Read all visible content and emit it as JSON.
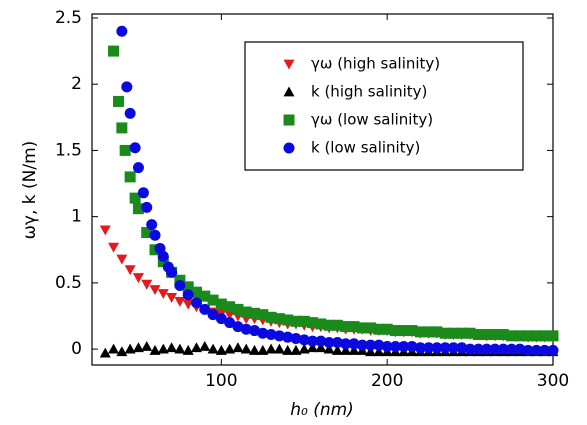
{
  "chart_data": {
    "type": "scatter",
    "x_label": "h₀ (nm)",
    "y_label": "ωγ, k (N/m)",
    "xlim": [
      22,
      300
    ],
    "ylim": [
      -0.12,
      2.53
    ],
    "xticks": [
      100,
      200,
      300
    ],
    "yticks": [
      0,
      0.5,
      1,
      1.5,
      2,
      2.5
    ],
    "legend": "upper right",
    "series": [
      {
        "name": "γω (high salinity)",
        "color": "#e41a1c",
        "marker": "triangle-down",
        "x": [
          30,
          35,
          40,
          45,
          50,
          55,
          60,
          65,
          70,
          75,
          80,
          85,
          90,
          95,
          100,
          105,
          110,
          115,
          120,
          125,
          130,
          135,
          140,
          145,
          150,
          155,
          160,
          165,
          170,
          175,
          180,
          185,
          190,
          195,
          200,
          205,
          210,
          215,
          220,
          225,
          230,
          235,
          240,
          245,
          250,
          255,
          260,
          265,
          270,
          275,
          280,
          285,
          290,
          295,
          300
        ],
        "values": [
          0.9,
          0.77,
          0.68,
          0.6,
          0.54,
          0.49,
          0.45,
          0.42,
          0.39,
          0.36,
          0.34,
          0.32,
          0.3,
          0.28,
          0.27,
          0.26,
          0.25,
          0.23,
          0.23,
          0.22,
          0.21,
          0.2,
          0.19,
          0.19,
          0.18,
          0.17,
          0.17,
          0.16,
          0.16,
          0.15,
          0.15,
          0.15,
          0.14,
          0.14,
          0.14,
          0.13,
          0.13,
          0.13,
          0.12,
          0.12,
          0.12,
          0.11,
          0.11,
          0.11,
          0.11,
          0.11,
          0.1,
          0.1,
          0.1,
          0.1,
          0.1,
          0.09,
          0.09,
          0.09,
          0.09
        ]
      },
      {
        "name": "k (high salinity)",
        "color": "#000000",
        "marker": "triangle-up",
        "x": [
          30,
          35,
          40,
          45,
          50,
          55,
          60,
          65,
          70,
          75,
          80,
          85,
          90,
          95,
          100,
          105,
          110,
          115,
          120,
          125,
          130,
          135,
          140,
          145,
          150,
          155,
          160,
          165,
          170,
          175,
          180,
          185,
          190,
          195,
          200,
          205,
          210,
          215,
          220,
          225,
          230,
          235,
          240,
          245,
          250,
          255,
          260,
          265,
          270,
          275,
          280,
          285,
          290,
          295,
          300
        ],
        "values": [
          -0.03,
          0.0,
          -0.02,
          0.0,
          0.01,
          0.02,
          -0.01,
          0.0,
          0.01,
          0.0,
          -0.01,
          0.01,
          0.02,
          0.0,
          -0.01,
          0.0,
          0.01,
          0.0,
          -0.01,
          -0.01,
          0.0,
          0.0,
          -0.01,
          -0.01,
          0.0,
          0.01,
          0.01,
          0.0,
          -0.01,
          -0.01,
          -0.01,
          -0.01,
          -0.02,
          -0.02,
          -0.02,
          -0.02,
          -0.02,
          -0.02,
          -0.02,
          -0.02,
          -0.02,
          -0.02,
          -0.02,
          -0.02,
          -0.02,
          -0.02,
          -0.02,
          -0.02,
          -0.02,
          -0.02,
          -0.02,
          -0.02,
          -0.02,
          -0.02,
          -0.02
        ]
      },
      {
        "name": "γω (low salinity)",
        "color": "#1a8a1a",
        "marker": "square",
        "x": [
          35,
          38,
          40,
          42,
          45,
          48,
          50,
          55,
          60,
          65,
          70,
          75,
          80,
          85,
          90,
          95,
          100,
          105,
          110,
          115,
          120,
          125,
          130,
          135,
          140,
          145,
          150,
          155,
          160,
          165,
          170,
          175,
          180,
          185,
          190,
          195,
          200,
          205,
          210,
          215,
          220,
          225,
          230,
          235,
          240,
          245,
          250,
          255,
          260,
          265,
          270,
          275,
          280,
          285,
          290,
          295,
          300
        ],
        "values": [
          2.25,
          1.87,
          1.67,
          1.5,
          1.3,
          1.14,
          1.06,
          0.88,
          0.75,
          0.66,
          0.58,
          0.52,
          0.47,
          0.43,
          0.4,
          0.37,
          0.34,
          0.32,
          0.3,
          0.28,
          0.27,
          0.26,
          0.24,
          0.23,
          0.22,
          0.21,
          0.21,
          0.2,
          0.19,
          0.18,
          0.18,
          0.17,
          0.17,
          0.16,
          0.16,
          0.15,
          0.15,
          0.14,
          0.14,
          0.14,
          0.13,
          0.13,
          0.13,
          0.12,
          0.12,
          0.12,
          0.12,
          0.11,
          0.11,
          0.11,
          0.11,
          0.1,
          0.1,
          0.1,
          0.1,
          0.1,
          0.1
        ]
      },
      {
        "name": "k (low salinity)",
        "color": "#0a0ae0",
        "marker": "circle",
        "x": [
          40,
          43,
          45,
          48,
          50,
          53,
          55,
          58,
          60,
          63,
          65,
          68,
          70,
          75,
          80,
          85,
          90,
          95,
          100,
          105,
          110,
          115,
          120,
          125,
          130,
          135,
          140,
          145,
          150,
          155,
          160,
          165,
          170,
          175,
          180,
          185,
          190,
          195,
          200,
          205,
          210,
          215,
          220,
          225,
          230,
          235,
          240,
          245,
          250,
          255,
          260,
          265,
          270,
          275,
          280,
          285,
          290,
          295,
          300
        ],
        "values": [
          2.4,
          1.98,
          1.78,
          1.52,
          1.37,
          1.18,
          1.07,
          0.94,
          0.86,
          0.76,
          0.7,
          0.62,
          0.58,
          0.48,
          0.41,
          0.35,
          0.3,
          0.26,
          0.23,
          0.2,
          0.17,
          0.15,
          0.14,
          0.12,
          0.11,
          0.1,
          0.09,
          0.08,
          0.07,
          0.06,
          0.06,
          0.05,
          0.05,
          0.04,
          0.04,
          0.03,
          0.03,
          0.03,
          0.02,
          0.02,
          0.02,
          0.02,
          0.01,
          0.01,
          0.01,
          0.01,
          0.01,
          0.01,
          0.0,
          0.0,
          0.0,
          0.0,
          0.0,
          0.0,
          0.0,
          -0.01,
          -0.01,
          -0.01,
          -0.01
        ]
      }
    ]
  }
}
